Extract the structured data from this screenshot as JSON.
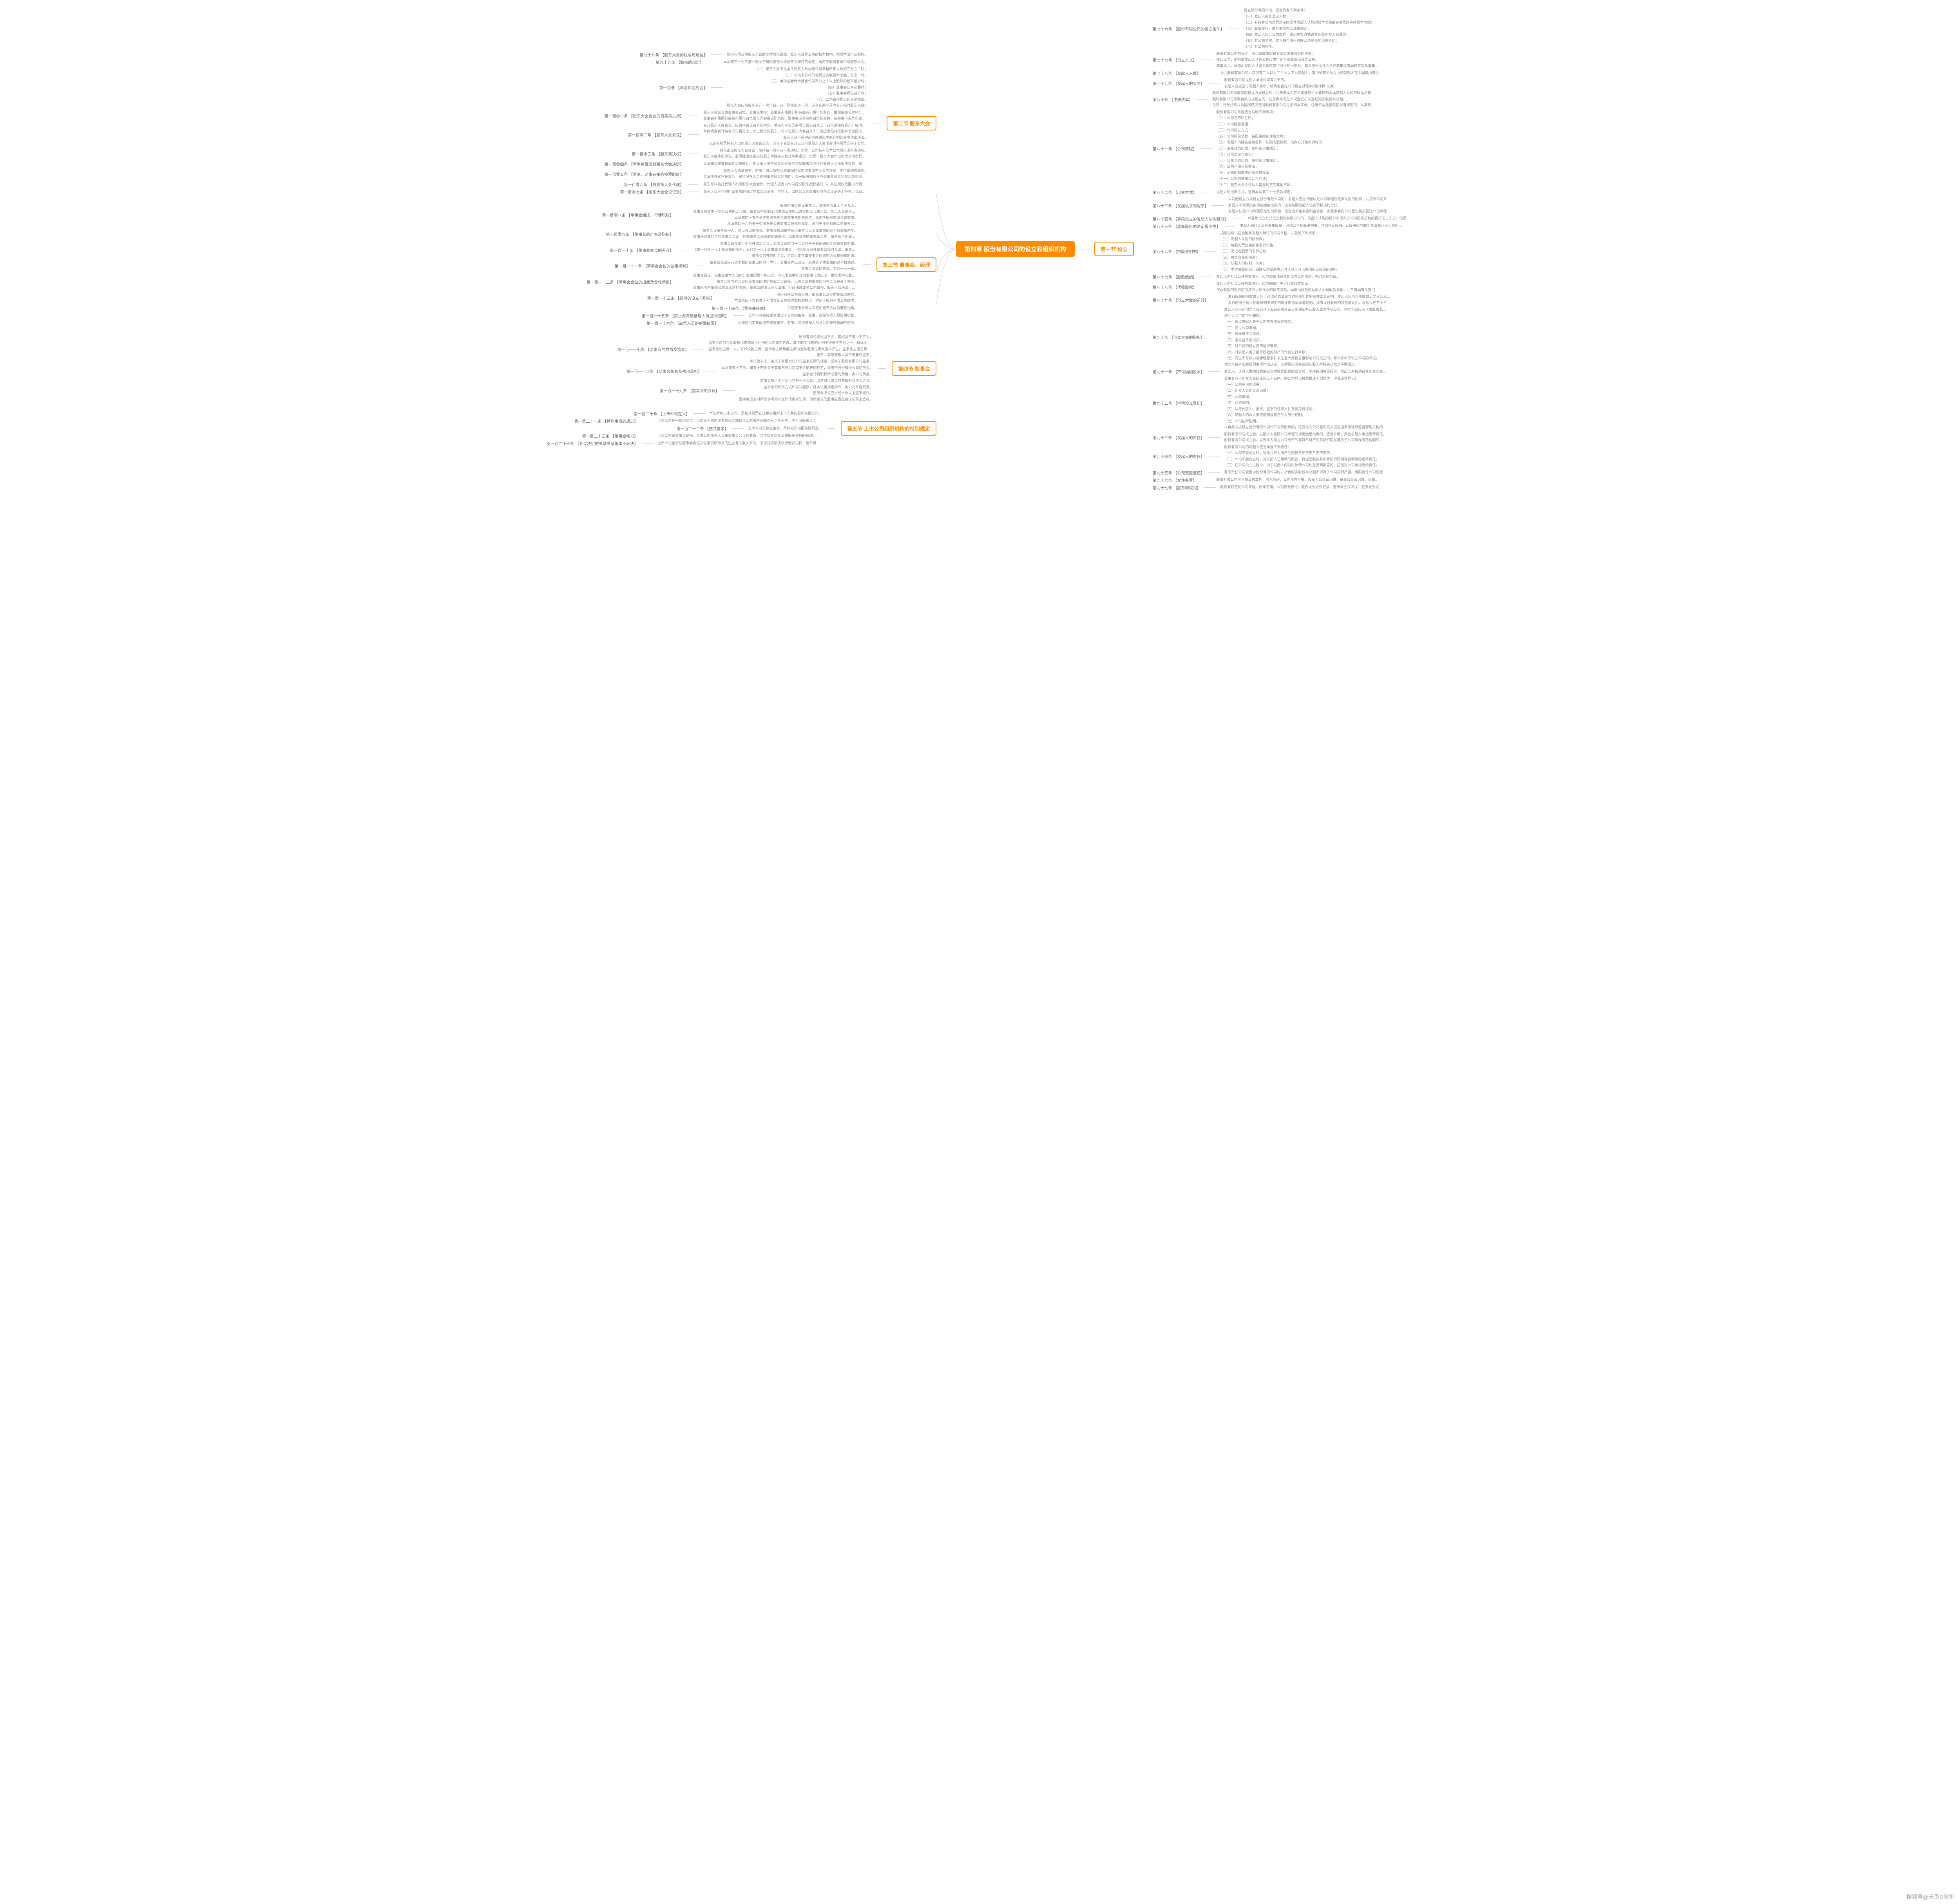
{
  "root": "第四章   股份有限公司的设立和组织机构",
  "watermark": "搜狐号@禾页D随笔",
  "left_sections": [
    {
      "title": "第二节  股东大会",
      "articles": [
        {
          "t": "第九十八条  【股东大会的组成与地位】",
          "d": [
            "股份有限公司股东大会由全体股东组成。股东大会是公司的权力机构，依照本法行使职权。"
          ]
        },
        {
          "t": "第九十九条  【职权的规定】",
          "d": [
            "本法第三十七条第一款关于有限责任公司股东会职权的规定，适用于股份有限公司股东大会。"
          ]
        },
        {
          "t": "第一百条  【年会和临时会】",
          "d": [
            "（一）董事人数不足本法规定人数或者公司章程所定人数的三分之二时；",
            "（二）公司未弥补的亏损达实收股本总额三分之一时；",
            "（三）单独或者合计持有公司百分之十以上股份的股东请求时；",
            "（四）董事会认为必要时；",
            "（五）监事会提议召开时；",
            "（六）公司章程规定的其他情形。",
            "股东大会应当每年召开一次年会。有下列情形之一的，应当在两个月内召开临时股东大会："
          ]
        },
        {
          "t": "第一百零一条  【股东大会会议的召集与主持】",
          "d": [
            "股东大会会议由董事会召集，董事长主持；董事长不能履行职务或者不履行职务的，由副董事长主持；副董事长不能履行职务或者不履行职务的，由半数以上董事共同推举一名董事主持。",
            "董事会不能履行或者不履行召集股东大会会议职责的，监事会应当及时召集和主持；监事会不召集和主持的，连续九十日以上单独或者合计持有公司百分之十以上股份的股东可以自行召集和主持。"
          ]
        },
        {
          "t": "第一百零二条  【股东大会会议】",
          "d": [
            "召开股东大会会议，应当将会议召开的时间、地点和审议的事项于会议召开二十日前通知各股东；临时股东大会应当于会议召开十五日前通知各股东；发行无记名股票的，应当于会议召开三十日前公告会议召开的时间、地点和审议事项。",
            "单独或者合计持有公司百分之三以上股份的股东，可以在股东大会召开十日前提出临时提案并书面提交董事会；董事会应当在收到提案后二日内通知其他股东，并将该临时提案提交股东大会审议。临时提案的内容应当属于股东大会职权范围，并有明确议题和具体决议事项。",
            "股东大会不得对前两款通知中未列明的事项作出决议。",
            "无记名股票持有人出席股东大会会议的，应当于会议召开五日前至股东大会闭会时将股票交存于公司。"
          ]
        },
        {
          "t": "第一百零三条  【股东表决权】",
          "d": [
            "股东出席股东大会会议，所持每一股份有一表决权。但是，公司持有的本公司股份没有表决权。",
            "股东大会作出决议，必须经出席会议的股东所持表决权过半数通过。但是，股东大会作出修改公司章程、增加或者减少注册资本的决议，以及公司合并、分立、解散或者变更公司形式的决议，必须经出席会议的股东所持表决权的三分之二以上通过。"
          ]
        },
        {
          "t": "第一百零四条  【董事薪酬须经股东大会决定】",
          "d": [
            "本法和公司章程规定公司转让、受让重大资产或者对外提供担保等事项必须经股东大会作出决议的，董事会应当及时召集股东大会会议，由股东大会就上述事项进行表决。"
          ]
        },
        {
          "t": "第一百零五条  【董事、监事选举的投票制度】",
          "d": [
            "股东大会选举董事、监事，可以依照公司章程的规定或者股东大会的决议，实行累积投票制。",
            "本法所称累积投票制，是指股东大会选举董事或者监事时，每一股份拥有与应选董事或者监事人数相同的表决权，股东拥有的表决权可以集中使用。"
          ]
        },
        {
          "t": "第一百零六条  【自股东大会代理】",
          "d": [
            "股东可以委托代理人出席股东大会会议，代理人应当向公司提交股东授权委托书，并在授权范围内行使表决权。"
          ]
        },
        {
          "t": "第一百零七条  【股东大会会议记录】",
          "d": [
            "股东大会应当对所议事项的决定作成会议记录，主持人、出席会议的董事应当在会议记录上签名。会议记录应当与出席股东的签名册及代理出席的委托书一并保存。"
          ]
        }
      ]
    },
    {
      "title": "第三节  董事会、经理",
      "articles": [
        {
          "t": "第一百零八条  【董事会组成、行使职权】",
          "d": [
            "股份有限公司设董事会，其成员为五人至十九人。",
            "董事会成员中可以有公司职工代表。董事会中的职工代表由公司职工通过职工代表大会、职工大会或者其他形式民主选举产生。",
            "本法第四十五条关于有限责任公司董事任期的规定，适用于股份有限公司董事。",
            "本法第四十六条关于有限责任公司董事会职权的规定，适用于股份有限公司董事会。"
          ]
        },
        {
          "t": "第一百零九条  【董事长的产生及职权】",
          "d": [
            "董事会设董事长一人，可以设副董事长。董事长和副董事长由董事会以全体董事的过半数选举产生。",
            "董事长召集和主持董事会会议，检查董事会决议的实施情况。副董事长协助董事长工作，董事长不能履行职务或者不履行职务的，由副董事长履行职务；副董事长不能履行职务或者不履行职务的，由半数以上董事共同推举一名董事履行职务。"
          ]
        },
        {
          "t": "第一百一十条  【董事会会议的召开】",
          "d": [
            "董事会每年度至少召开两次会议，每次会议应当于会议召开十日前通知全体董事和监事。",
            "代表十分之一以上表决权的股东、三分之一以上董事或者监事会，可以提议召开董事会临时会议。董事长应当自接到提议后十日内，召集和主持董事会会议。",
            "董事会召开临时会议，可以另定召集董事会的通知方式和通知时限。"
          ]
        },
        {
          "t": "第一百一十一条  【董事会会议的议事规则】",
          "d": [
            "董事会会议应有过半数的董事出席方可举行。董事会作出决议，必须经全体董事的过半数通过。",
            "董事会决议的表决，实行一人一票。"
          ]
        },
        {
          "t": "第一百一十二条  【董事会会议的出席及责任承担】",
          "d": [
            "董事会会议，应由董事本人出席；董事因故不能出席，可以书面委托其他董事代为出席，委托书中应载明授权范围。",
            "董事会应当对会议所议事项的决定作成会议记录，出席会议的董事应当在会议记录上签名。",
            "董事应当对董事会的决议承担责任。董事会的决议违反法律、行政法规或者公司章程、股东大会决议，致使公司遭受严重损失的，参与决议的董事对公司负赔偿责任。但经证明在表决时曾表明异议并记载于会议记录的，该董事可以免除责任。"
          ]
        },
        {
          "t": "第一百一十三条  【经理的设立与职权】",
          "d": [
            "股份有限公司设经理，由董事会决定聘任或者解聘。",
            "本法第四十九条关于有限责任公司经理职权的规定，适用于股份有限公司经理。"
          ]
        },
        {
          "t": "第一百一十四条  【董事兼经理】",
          "d": [
            "公司董事会可以决定由董事会成员兼任经理。"
          ]
        },
        {
          "t": "第一百一十五条  【禁止向高级管理人员提供借款】",
          "d": [
            "公司不得直接或者通过子公司向董事、监事、高级管理人员提供借款。"
          ]
        },
        {
          "t": "第一百一十六条  【高管人员的薪酬披露】",
          "d": [
            "公司应当定期向股东披露董事、监事、高级管理人员从公司获得报酬的情况。"
          ]
        }
      ]
    },
    {
      "title": "第四节  监事会",
      "articles": [
        {
          "t": "第一百一十七条  【监事会的成员及监事】",
          "d": [
            "股份有限公司设监事会，其成员不得少于三人。",
            "监事会应当包括股东代表和适当比例的公司职工代表，其中职工代表的比例不得低于三分之一，具体比例由公司章程规定。监事会中的职工代表由公司职工通过职工代表大会、职工大会或者其他形式民主选举产生。",
            "监事会设主席一人，可以设副主席。监事会主席和副主席由全体监事过半数选举产生。监事会主席召集和主持监事会会议；监事会主席不能履行职务或者不履行职务的，由监事会副主席召集和主持监事会会议；监事会副主席不能履行职务或者不履行职务的，由半数以上监事共同推举一名监事召集和主持监事会会议。",
            "董事、高级管理人员不得兼任监事。",
            "本法第五十二条关于有限责任公司监事任期的规定，适用于股份有限公司监事。"
          ]
        },
        {
          "t": "第一百一十八条  【监事会职权及费用承担】",
          "d": [
            "本法第五十三条、第五十四条关于有限责任公司监事会职权的规定，适用于股份有限公司监事会。",
            "监事会行使职权所必需的费用，由公司承担。"
          ]
        },
        {
          "t": "第一百一十九条  【监事会的会议】",
          "d": [
            "监事会每六个月至少召开一次会议。监事可以提议召开临时监事会会议。",
            "监事会的议事方式和表决程序，除本法有规定的外，由公司章程规定。",
            "监事会决议应当经半数以上监事通过。",
            "监事会应当对所议事项的决定作成会议记录，出席会议的监事应当在会议记录上签名。"
          ]
        }
      ]
    },
    {
      "title": "第五节  上市公司组织机构的特别规定",
      "articles": [
        {
          "t": "第一百二十条  【上市公司定义】",
          "d": [
            "本法所称上市公司，是指其股票在证券交易所上市交易的股份有限公司。"
          ]
        },
        {
          "t": "第一百二十一条  【特别事项的通过】",
          "d": [
            "上市公司在一年内购买、出售重大资产或者担保金额超过公司资产总额百分之三十的，应当由股东大会作出决议，并经出席会议的股东所持表决权的三分之二以上通过。"
          ]
        },
        {
          "t": "第一百二十二条  【独立董事】",
          "d": [
            "上市公司设独立董事，具体办法由国务院规定。"
          ]
        },
        {
          "t": "第一百二十三条  【董事会秘书】",
          "d": [
            "上市公司设董事会秘书，负责公司股东大会和董事会会议的筹备、文件保管以及公司股东资料的管理，办理信息披露事务等事宜。"
          ]
        },
        {
          "t": "第一百二十四条  【会议决定的关联关系董事不表决】",
          "d": [
            "上市公司董事与董事会会议决议事项所涉及的企业有关联关系的，不得对该项决议行使表决权，也不得代理其他董事行使表决权。该董事会会议由过半数的无关联关系董事出席即可举行，董事会会议所作决议须经无关联关系董事过半数通过。出席董事会的无关联关系董事人数不足三人的，应将该事项提交上市公司股东大会审议。"
          ]
        }
      ]
    }
  ],
  "right_sections": [
    {
      "title": "第一节  设立",
      "articles": [
        {
          "t": "第七十六条  【股份有限公司的设立条件】",
          "d": [
            "设立股份有限公司，应当具备下列条件：",
            "（一）发起人符合法定人数；",
            "（二）有符合公司章程规定的全体发起人认购的股本总额或者募集的实收股本总额；",
            "（三）股份发行、筹办事项符合法律规定；",
            "（四）发起人制订公司章程，采用募集方式设立的经创立大会通过；",
            "（五）有公司名称，建立符合股份有限公司要求的组织机构；",
            "（六）有公司住所。"
          ]
        },
        {
          "t": "第七十七条  【设立方式】",
          "d": [
            "股份有限公司的设立，可以采取发起设立或者募集设立的方式。",
            "发起设立，是指由发起人认购公司应发行的全部股份而设立公司。",
            "募集设立，是指由发起人认购公司应发行股份的一部分，其余股份向社会公开募集或者向特定对象募集而设立公司。"
          ]
        },
        {
          "t": "第七十八条  【发起人人数】",
          "d": [
            "设立股份有限公司，应当有二人以上二百人以下为发起人，其中须有半数以上的发起人在中国境内有住所。"
          ]
        },
        {
          "t": "第七十九条  【发起人的义务】",
          "d": [
            "股份有限公司发起人承担公司筹办事务。",
            "发起人应当签订发起人协议，明确各自在公司设立过程中的权利和义务。"
          ]
        },
        {
          "t": "第八十条  【注册资本】",
          "d": [
            "股份有限公司采取发起设立方式设立的，注册资本为在公司登记机关登记的全体发起人认购的股本总额。在发起人认购的股份缴足前，不得向他人募集股份。",
            "股份有限公司采取募集方式设立的，注册资本为在公司登记机关登记的实收股本总额。",
            "法律、行政法规以及国务院决定对股份有限公司注册资本实缴、注册资本最低限额另有规定的，从其规定。"
          ]
        },
        {
          "t": "第八十一条  【公司章程】",
          "d": [
            "股份有限公司章程应当载明下列事项：",
            "（一）公司名称和住所；",
            "（二）公司经营范围；",
            "（三）公司设立方式；",
            "（四）公司股份总数、每股金额和注册资本；",
            "（五）发起人的姓名或者名称、认购的股份数、出资方式和出资时间；",
            "（六）董事会的组成、职权和议事规则；",
            "（七）公司法定代表人；",
            "（八）监事会的组成、职权和议事规则；",
            "（九）公司利润分配办法；",
            "（十）公司的解散事由与清算办法；",
            "（十一）公司的通知和公告办法；",
            "（十二）股东大会会议认为需要规定的其他事项。"
          ]
        },
        {
          "t": "第八十二条  【出资方式】",
          "d": [
            "发起人的出资方式，适用本法第二十七条款规定。"
          ]
        },
        {
          "t": "第八十三条  【发起设立的程序】",
          "d": [
            "以发起设立方式设立股份有限公司的，发起人应当书面认足公司章程规定其认购的股份，并按照公司章程规定缴纳出资。以非货币财产出资的，应当依法办理其财产权的转移手续。",
            "发起人不依照前款规定缴纳出资的，应当按照发起人协议承担违约责任。",
            "发起人认足公司章程规定的出资后，应当选举董事会和监事会，由董事会向公司登记机关报送公司章程以及法律、行政法规规定的其他文件，申请设立登记。"
          ]
        },
        {
          "t": "第八十四条  【募集设立的发起人从购股份】",
          "d": [
            "以募集设立方式设立股份有限公司的，发起人认购的股份不得少于公司股份总数的百分之三十五；但是，法律、行政法规另有规定的，从其规定。"
          ]
        },
        {
          "t": "第八十五条  【募集股份的法定程序书】",
          "d": [
            "发起人向社会公开募集股份，必须公告招股说明书，并制作认股书。认股书应当载明本法第八十六条所列事项，由认股人填写认购股数、金额、住所，并签名、盖章。认股人按照所认购股数缴纳股款。"
          ]
        },
        {
          "t": "第八十六条  【招股说明书】",
          "d": [
            "招股说明书应当附有发起人制订的公司章程，并载明下列事项：",
            "（一）发起人认购的股份数；",
            "（二）每股的票面金额和发行价格；",
            "（三）无记名股票的发行总数；",
            "（四）募集资金的用途；",
            "（五）认股人的权利、义务；",
            "（六）本次募股的起止期限及逾期未募足时认股人可以撤回所认股份的说明。"
          ]
        },
        {
          "t": "第八十七条  【股款缴纳】",
          "d": [
            "发起人向社会公开募集股份，应当由依法设立的证券公司承销，签订承销协议。"
          ]
        },
        {
          "t": "第八十八条  【代收股款】",
          "d": [
            "发起人向社会公开募集股份，应当同银行签订代收股款协议。",
            "代收股款的银行应当按照协议代收和保存股款，向缴纳股款的认股人出具收款单据，并负有向有关部门出具收款证明的义务。"
          ]
        },
        {
          "t": "第八十九条  【创立大会的召开】",
          "d": [
            "发行股份的股款缴足后，必须经依法设立的验资机构验资并出具证明。发起人应当自股款缴足之日起三十日内主持召开公司创立大会。创立大会由发起人、认股人组成。",
            "发行的股份超过招股说明书规定的截止期限尚未募足的，或者发行股份的股款缴足后，发起人在三十日内未召开创立大会的，认股人可以按照所缴股款并加算银行同期存款利息，要求发起人返还。"
          ]
        },
        {
          "t": "第九十条  【创立大会的职权】",
          "d": [
            "发起人应当在创立大会召开十五日前将会议日期通知各认股人或者予以公告。创立大会应有代表股份总数过半数的发起人、认股人出席，方可举行。",
            "创立大会行使下列职权：",
            "（一）审议发起人关于公司筹办情况的报告；",
            "（二）通过公司章程；",
            "（三）选举董事会成员；",
            "（四）选举监事会成员；",
            "（五）对公司的设立费用进行审核；",
            "（六）对发起人用于抵作股款的财产的作价进行审核；",
            "（七）发生不可抗力或者经营条件发生重大变化直接影响公司设立的，可以作出不设立公司的决议；",
            "创立大会对前款所列事项作出决议，必须经出席会议的认股人所持表决权过半数通过。"
          ]
        },
        {
          "t": "第九十一条  【不得抽回股本】",
          "d": [
            "发起人、认股人缴纳股款或者交付抵作股款的出资后，除未按期募足股份、发起人未按期召开创立大会或者创立大会决议不设立公司的情形外，不得抽回其股本。"
          ]
        },
        {
          "t": "第九十二条  【申请设立登记】",
          "d": [
            "董事会应于创立大会结束后三十日内，向公司登记机关报送下列文件，申请设立登记：",
            "（一）公司登记申请书；",
            "（二）创立大会的会议记录；",
            "（三）公司章程；",
            "（四）验资证明；",
            "（五）法定代表人、董事、监事的任职文件及其身份证明；",
            "（六）发起人的法人资格证明或者自然人身份证明；",
            "（七）公司住所证明。",
            "以募集方式设立股份有限公司公开发行股票的，还应当向公司登记机关报送国务院证券监督管理机构的核准文件。"
          ]
        },
        {
          "t": "第九十三条  【发起人的责任】",
          "d": [
            "股份有限公司成立后，发起人未按照公司章程的规定缴足出资的，应当补缴；其他发起人承担连带责任。",
            "股份有限公司成立后，发现作为设立公司出资的非货币财产的实际价额显著低于公司章程所定价额的，应当由交付该出资的发起人补足其差额；其他发起人承担连带责任。"
          ]
        },
        {
          "t": "第九十四条  【发起人的责任】",
          "d": [
            "股份有限公司的发起人应当承担下列责任：",
            "（一）公司不能成立时，对设立行为所产生的债务和费用负连带责任；",
            "（二）公司不能成立时，对认股人已缴纳的股款，负返还股款并加算银行同期存款利息的连带责任；",
            "（三）在公司设立过程中，由于发起人的过失致使公司利益受到损害的，应当对公司承担赔偿责任。"
          ]
        },
        {
          "t": "第九十五条  【公司变更登记】",
          "d": [
            "有限责任公司变更为股份有限公司时，折合的实收股本总额不得高于公司净资产额。有限责任公司变更为股份有限公司，为增加资本公开发行股份时，应当依法办理。"
          ]
        },
        {
          "t": "第九十六条  【文件备置】",
          "d": [
            "股份有限公司应当将公司章程、股东名册、公司债券存根、股东大会会议记录、董事会会议记录、监事会会议记录、财务会计报告置备于本公司。"
          ]
        },
        {
          "t": "第九十七条  【股东的权利】",
          "d": [
            "股东有权查阅公司章程、股东名册、公司债券存根、股东大会会议记录、董事会会议决议、监事会会议决议、财务会计报告，对公司的经营提出建议或者质询。"
          ]
        }
      ]
    }
  ]
}
